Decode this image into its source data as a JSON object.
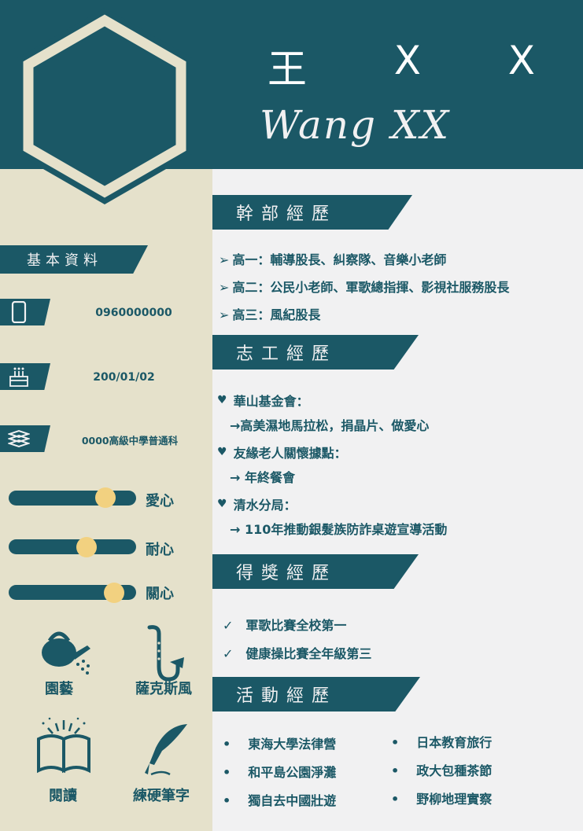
{
  "header": {
    "name_chars": [
      "王",
      "X",
      "X"
    ],
    "name_en": "Wang XX"
  },
  "sidebar": {
    "basic_title": "基本資料",
    "info": [
      {
        "icon": "phone-icon",
        "text": "0960000000"
      },
      {
        "icon": "cake-icon",
        "text": "200/01/02"
      },
      {
        "icon": "books-icon",
        "text": "0000高級中學普通科"
      }
    ],
    "traits": [
      {
        "label": "愛心",
        "level": 0.76
      },
      {
        "label": "耐心",
        "level": 0.61
      },
      {
        "label": "關心",
        "level": 0.83
      }
    ],
    "hobbies": [
      {
        "icon": "watering-can-icon",
        "label": "園藝"
      },
      {
        "icon": "saxophone-icon",
        "label": "薩克斯風"
      },
      {
        "icon": "book-icon",
        "label": "閱讀"
      },
      {
        "icon": "quill-icon",
        "label": "練硬筆字"
      }
    ]
  },
  "cadre": {
    "title": "幹部經歷",
    "items": [
      "高一：輔導股長、糾察隊、音樂小老師",
      "高二：公民小老師、軍歌總指揮、影視社服務股長",
      "高三：風紀股長"
    ]
  },
  "volunteer": {
    "title": "志工經歷",
    "groups": [
      {
        "org": "華山基金會：",
        "detail": "→高美濕地馬拉松，捐晶片、做愛心"
      },
      {
        "org": "友緣老人關懷據點：",
        "detail": "→ 年終餐會"
      },
      {
        "org": "清水分局：",
        "detail": "→ 110年推動銀髮族防詐桌遊宣導活動"
      }
    ]
  },
  "awards": {
    "title": "得獎經歷",
    "items": [
      "軍歌比賽全校第一",
      "健康操比賽全年級第三"
    ]
  },
  "activities": {
    "title": "活動經歷",
    "left": [
      "東海大學法律營",
      "和平島公園淨灘",
      "獨自去中國壯遊"
    ],
    "right": [
      "日本教育旅行",
      "政大包種茶節",
      "野柳地理實察"
    ]
  },
  "colors": {
    "teal": "#1b5866",
    "sand": "#e5e1cb",
    "knob": "#f2d180",
    "paper": "#f1f1f2"
  }
}
